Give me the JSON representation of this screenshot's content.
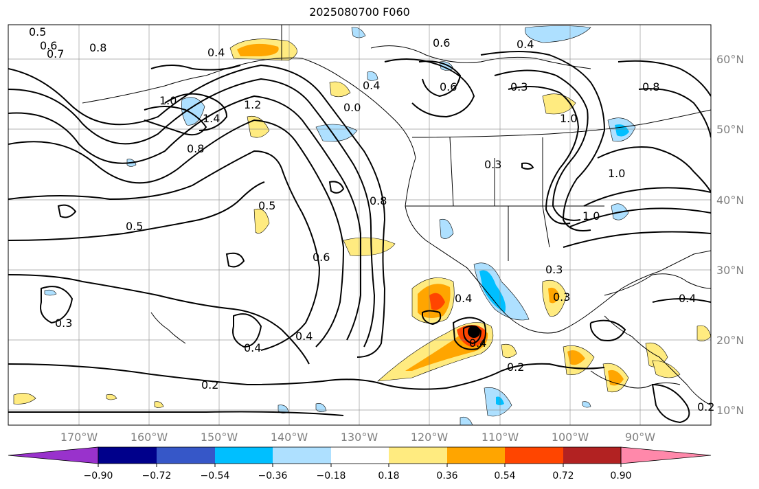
{
  "title": "2025080700 F060",
  "lat_labels": [
    "60°N",
    "50°N",
    "40°N",
    "30°N",
    "20°N",
    "10°N"
  ],
  "lon_labels": [
    "170°W",
    "160°W",
    "150°W",
    "140°W",
    "130°W",
    "120°W",
    "110°W",
    "100°W",
    "90°W"
  ],
  "colorbar": {
    "colors": [
      "#9932cc",
      "#00008b",
      "#3657c8",
      "#00bfff",
      "#aee0ff",
      "#ffffff",
      "#ffeb80",
      "#ffa500",
      "#ff4500",
      "#b22222",
      "#ff88aa"
    ],
    "labels": [
      "−0.90",
      "−0.72",
      "−0.54",
      "−0.36",
      "−0.18",
      "0.18",
      "0.36",
      "0.54",
      "0.72",
      "0.90"
    ]
  },
  "contour_labels": [
    "0.5",
    "0.6",
    "0.7",
    "0.8",
    "0.4",
    "0.6",
    "0.4",
    "0.6",
    "0.3",
    "0.8",
    "0.4",
    "1.0",
    "1.4",
    "1.2",
    "0.0",
    "1.0",
    "0.8",
    "0.3",
    "1.0",
    "0.5",
    "0.5",
    "0.8",
    "0.6",
    "1.0",
    "0.3",
    "0.4",
    "0.3",
    "0.4",
    "0.4",
    "0.4",
    "0.4",
    "0.2",
    "0.2",
    "0.3",
    "0.2"
  ]
}
